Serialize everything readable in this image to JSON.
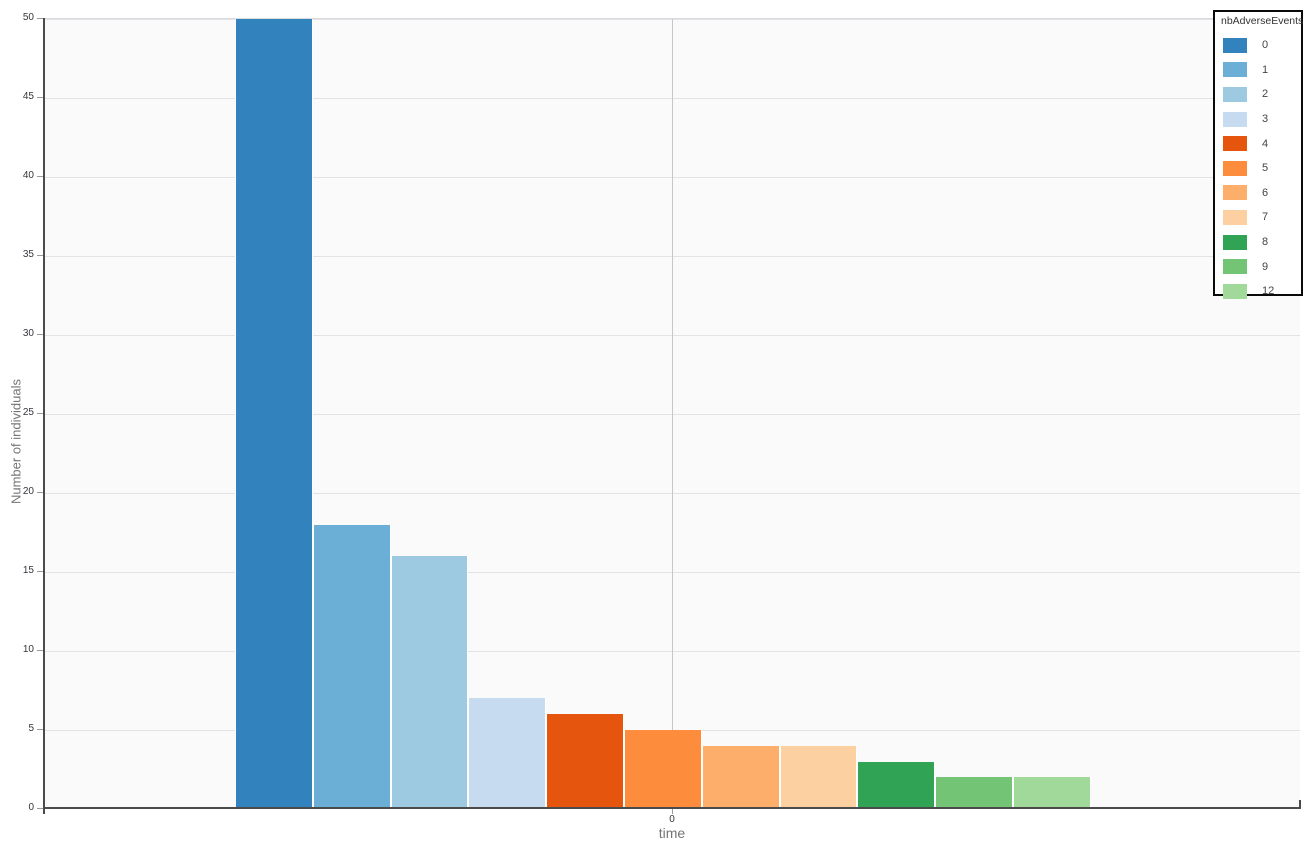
{
  "chart_data": {
    "type": "bar",
    "categories": [
      "0"
    ],
    "legend_title": "nbAdverseEvents",
    "series": [
      {
        "name": "0",
        "value": 50,
        "color": "#3182bd"
      },
      {
        "name": "1",
        "value": 18,
        "color": "#6baed6"
      },
      {
        "name": "2",
        "value": 16,
        "color": "#9ecae1"
      },
      {
        "name": "3",
        "value": 7,
        "color": "#c6dbef"
      },
      {
        "name": "4",
        "value": 6,
        "color": "#e6550d"
      },
      {
        "name": "5",
        "value": 5,
        "color": "#fd8d3c"
      },
      {
        "name": "6",
        "value": 4,
        "color": "#fdae6b"
      },
      {
        "name": "7",
        "value": 4,
        "color": "#fdd0a2"
      },
      {
        "name": "8",
        "value": 3,
        "color": "#31a354"
      },
      {
        "name": "9",
        "value": 2,
        "color": "#74c476"
      },
      {
        "name": "12",
        "value": 2,
        "color": "#a1d99b"
      }
    ],
    "title": "",
    "xlabel": "time",
    "ylabel": "Number of individuals",
    "x_tick_labels": [
      "0"
    ],
    "ylim": [
      0,
      50
    ],
    "yticks": [
      0,
      5,
      10,
      15,
      20,
      25,
      30,
      35,
      40,
      45,
      50
    ],
    "grid": true,
    "legend_position": "top-right",
    "plot_background": "#fafafb",
    "axis_color": "#4b4b4b"
  }
}
